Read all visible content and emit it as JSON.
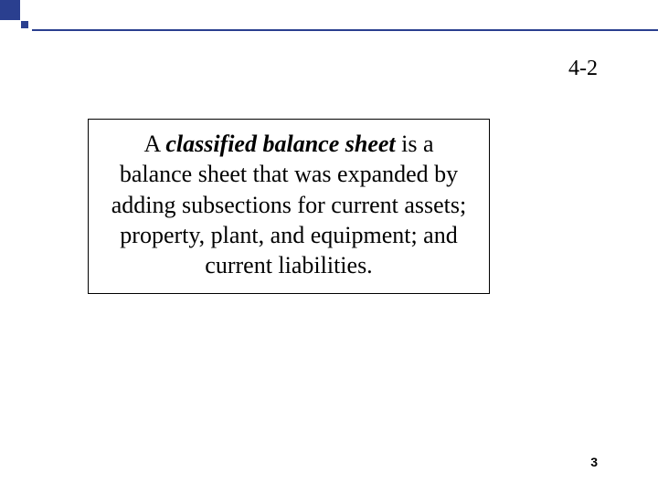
{
  "header": {
    "accent_color": "#2a3f8f",
    "bg_color": "#ffffff"
  },
  "page_number_top": "4-2",
  "content": {
    "pre": "A ",
    "emph": "classified balance sheet",
    "post": " is a balance sheet that was expanded by adding subsections for current assets; property, plant, and equipment; and current liabilities.",
    "font_size_pt": 26,
    "border_color": "#000000"
  },
  "page_number_bottom": "3"
}
